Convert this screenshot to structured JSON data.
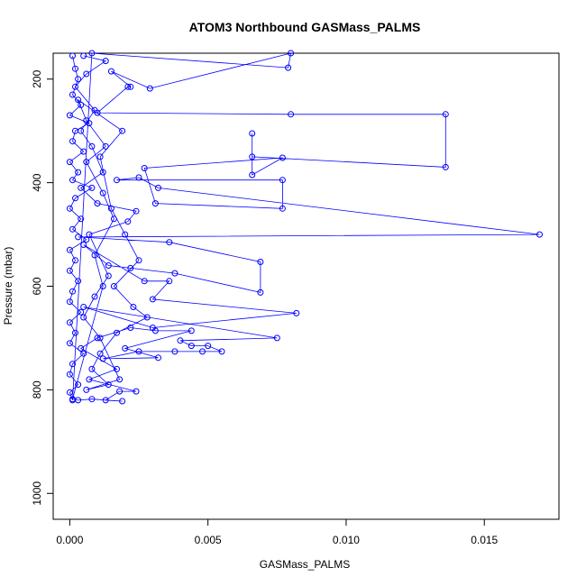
{
  "chart_data": {
    "type": "line",
    "title": "ATOM3 Northbound GASMass_PALMS",
    "xlabel": "GASMass_PALMS",
    "ylabel": "Pressure (mbar)",
    "xlim": [
      -0.0006,
      0.0177
    ],
    "ylim": [
      1050,
      150
    ],
    "y_axis_reversed": true,
    "x_ticks": [
      0.0,
      0.005,
      0.01,
      0.015
    ],
    "x_tick_labels": [
      "0.000",
      "0.005",
      "0.010",
      "0.015"
    ],
    "y_ticks": [
      200,
      400,
      600,
      800,
      1000
    ],
    "y_tick_labels": [
      "200",
      "400",
      "600",
      "800",
      "1000"
    ],
    "grid": false,
    "legend": "none",
    "series_color": "#0000ff",
    "series": [
      {
        "marker": "open-circle",
        "line": true,
        "points": [
          [
            0.0001,
            155
          ],
          [
            0.0002,
            180
          ],
          [
            0.0003,
            200
          ],
          [
            0.0001,
            230
          ],
          [
            0.0004,
            250
          ],
          [
            0.0,
            270
          ],
          [
            0.0007,
            285
          ],
          [
            0.0002,
            300
          ],
          [
            0.0001,
            320
          ],
          [
            0.0005,
            340
          ],
          [
            0.0,
            360
          ],
          [
            0.0003,
            380
          ],
          [
            0.0001,
            395
          ],
          [
            0.0008,
            410
          ],
          [
            0.0002,
            430
          ],
          [
            0.0,
            450
          ],
          [
            0.0004,
            470
          ],
          [
            0.0001,
            490
          ],
          [
            0.0006,
            510
          ],
          [
            0.0,
            530
          ],
          [
            0.0002,
            550
          ],
          [
            0.0,
            570
          ],
          [
            0.0003,
            590
          ],
          [
            0.0001,
            610
          ],
          [
            0.0,
            630
          ],
          [
            0.0004,
            650
          ],
          [
            0.0,
            670
          ],
          [
            0.0002,
            690
          ],
          [
            0.0,
            710
          ],
          [
            0.0005,
            730
          ],
          [
            0.0001,
            750
          ],
          [
            0.0,
            770
          ],
          [
            0.0003,
            790
          ],
          [
            0.0,
            805
          ],
          [
            0.0001,
            820
          ],
          [
            0.0008,
            150
          ],
          [
            0.0079,
            178
          ],
          [
            0.008,
            150
          ],
          [
            0.0029,
            218
          ],
          [
            0.0015,
            185
          ],
          [
            0.0022,
            215
          ],
          [
            0.0021,
            215
          ],
          [
            0.001,
            265
          ],
          [
            0.008,
            268
          ],
          [
            0.0136,
            268
          ],
          [
            0.0136,
            370
          ],
          [
            0.0066,
            350
          ],
          [
            0.0066,
            305
          ],
          [
            0.0066,
            385
          ],
          [
            0.0077,
            352
          ],
          [
            0.0027,
            372
          ],
          [
            0.0031,
            440
          ],
          [
            0.0077,
            450
          ],
          [
            0.0077,
            395
          ],
          [
            0.0017,
            395
          ],
          [
            0.0025,
            390
          ],
          [
            0.0032,
            410
          ],
          [
            0.017,
            500
          ],
          [
            0.0003,
            505
          ],
          [
            0.0036,
            515
          ],
          [
            0.0069,
            553
          ],
          [
            0.0069,
            612
          ],
          [
            0.0038,
            575
          ],
          [
            0.0022,
            565
          ],
          [
            0.0014,
            560
          ],
          [
            0.0005,
            520
          ],
          [
            0.0027,
            590
          ],
          [
            0.0036,
            590
          ],
          [
            0.003,
            625
          ],
          [
            0.0082,
            652
          ],
          [
            0.003,
            680
          ],
          [
            0.0005,
            640
          ],
          [
            0.0075,
            700
          ],
          [
            0.004,
            705
          ],
          [
            0.0044,
            715
          ],
          [
            0.005,
            715
          ],
          [
            0.0055,
            726
          ],
          [
            0.0048,
            726
          ],
          [
            0.0038,
            726
          ],
          [
            0.0025,
            726
          ],
          [
            0.0012,
            740
          ],
          [
            0.0032,
            738
          ],
          [
            0.002,
            720
          ],
          [
            0.0044,
            686
          ],
          [
            0.0031,
            686
          ],
          [
            0.0022,
            680
          ],
          [
            0.001,
            700
          ],
          [
            0.0004,
            720
          ],
          [
            0.0017,
            760
          ],
          [
            0.0007,
            780
          ],
          [
            0.0024,
            803
          ],
          [
            0.0018,
            803
          ],
          [
            0.0013,
            820
          ],
          [
            0.0019,
            822
          ],
          [
            0.0008,
            818
          ],
          [
            0.0003,
            820
          ],
          [
            0.0001,
            818
          ],
          [
            0.0012,
            600
          ],
          [
            0.0009,
            540
          ],
          [
            0.0016,
            470
          ],
          [
            0.0012,
            420
          ],
          [
            0.0006,
            360
          ],
          [
            0.0013,
            330
          ],
          [
            0.0006,
            280
          ],
          [
            0.0003,
            240
          ],
          [
            0.0019,
            300
          ],
          [
            0.0011,
            350
          ],
          [
            0.0015,
            450
          ],
          [
            0.002,
            500
          ],
          [
            0.0025,
            550
          ],
          [
            0.0016,
            600
          ],
          [
            0.0023,
            640
          ],
          [
            0.0028,
            660
          ],
          [
            0.0017,
            690
          ],
          [
            0.0011,
            730
          ],
          [
            0.0008,
            760
          ],
          [
            0.0014,
            790
          ],
          [
            0.0006,
            800
          ],
          [
            0.0018,
            780
          ],
          [
            0.0011,
            700
          ],
          [
            0.0005,
            660
          ],
          [
            0.0009,
            620
          ],
          [
            0.0014,
            580
          ],
          [
            0.0007,
            500
          ],
          [
            0.0021,
            475
          ],
          [
            0.0024,
            455
          ],
          [
            0.001,
            440
          ],
          [
            0.0004,
            410
          ],
          [
            0.0012,
            380
          ],
          [
            0.0008,
            330
          ],
          [
            0.0004,
            300
          ],
          [
            0.0009,
            260
          ],
          [
            0.0002,
            215
          ],
          [
            0.0006,
            190
          ],
          [
            0.0013,
            165
          ],
          [
            0.0005,
            155
          ]
        ]
      }
    ]
  }
}
